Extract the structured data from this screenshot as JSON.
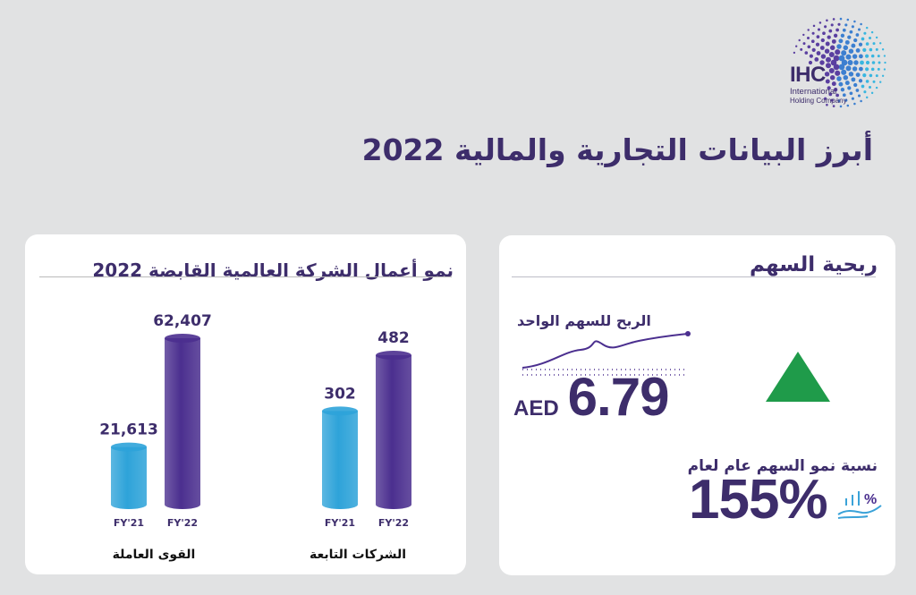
{
  "brand": {
    "name": "IHC",
    "subtitle_line1": "International",
    "subtitle_line2": "Holding Company"
  },
  "page": {
    "title": "أبرز البيانات التجارية والمالية 2022"
  },
  "colors": {
    "background": "#e1e2e3",
    "primary_text": "#3d2d6b",
    "fy21_bar": "#2ea3d9",
    "fy22_bar": "#4b2f8f",
    "up_indicator": "#1f9b4a"
  },
  "chart_data": {
    "type": "bar",
    "title": "نمو أعمال الشركة العالمية القابضة 2022",
    "groups": [
      {
        "label": "القوى العاملة",
        "categories": [
          "FY'21",
          "FY'22"
        ],
        "values": [
          21613,
          62407
        ],
        "value_labels": [
          "21,613",
          "62,407"
        ]
      },
      {
        "label": "الشركات التابعة",
        "categories": [
          "FY'21",
          "FY'22"
        ],
        "values": [
          302,
          482
        ],
        "value_labels": [
          "302",
          "482"
        ]
      }
    ],
    "series_colors": [
      "#2ea3d9",
      "#4b2f8f"
    ]
  },
  "share": {
    "title": "ربحية السهم",
    "eps_label": "الربح للسهم الواحد",
    "eps_currency": "AED",
    "eps_value": "6.79",
    "trend_icon": "up-triangle-icon",
    "growth_label": "نسبة نمو السهم عام لعام",
    "growth_value": "155%",
    "growth_icon": "hand-growth-icon"
  }
}
